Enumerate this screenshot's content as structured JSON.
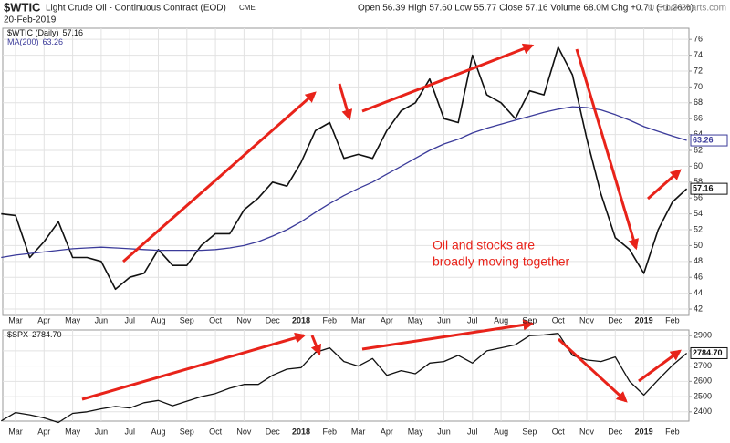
{
  "chart_data": [
    {
      "type": "line",
      "title": "$WTIC",
      "subtitle": "Light Crude Oil - Continuous Contract (EOD)",
      "exchange": "CME",
      "date": "20-Feb-2019",
      "quote": "Open 56.39  High 57.60  Low 55.77  Close 57.16  Volume 68.0M  Chg +0.71 (+1.26%)",
      "source": "© StockCharts.com",
      "annotation": [
        "Oil and stocks are",
        "broadly moving together"
      ],
      "categories": [
        null,
        "Mar",
        null,
        "Apr",
        null,
        "May",
        null,
        "Jun",
        null,
        "Jul",
        null,
        "Aug",
        null,
        "Sep",
        null,
        "Oct",
        null,
        "Nov",
        null,
        "Dec",
        null,
        "2018",
        null,
        "Feb",
        null,
        "Mar",
        null,
        "Apr",
        null,
        "May",
        null,
        "Jun",
        null,
        "Jul",
        null,
        "Aug",
        null,
        "Sep",
        null,
        "Oct",
        null,
        "Nov",
        null,
        "Dec",
        null,
        "2019",
        null,
        "Feb",
        null
      ],
      "series": [
        {
          "name": "$WTIC (Daily)",
          "color": "#111111",
          "values": [
            54,
            53.8,
            48.5,
            50.5,
            53,
            48.5,
            48.5,
            48,
            44.5,
            46,
            46.5,
            49.5,
            47.5,
            47.5,
            50,
            51.5,
            51.5,
            54.5,
            56,
            58,
            57.5,
            60.5,
            64.5,
            65.5,
            61,
            61.5,
            61,
            64.5,
            67,
            68,
            71,
            66,
            65.5,
            74,
            69,
            68,
            66,
            69.5,
            69,
            75,
            71.5,
            63.5,
            56.5,
            51,
            49.5,
            46.5,
            52,
            55.5,
            57.16
          ]
        },
        {
          "name": "MA(200)",
          "color": "#3b3b9a",
          "values": [
            48.5,
            48.8,
            49,
            49.2,
            49.4,
            49.6,
            49.7,
            49.8,
            49.7,
            49.6,
            49.5,
            49.4,
            49.4,
            49.4,
            49.4,
            49.5,
            49.7,
            50,
            50.5,
            51.2,
            52,
            53,
            54.2,
            55.3,
            56.3,
            57.2,
            58,
            59,
            60,
            61,
            62,
            62.8,
            63.4,
            64.2,
            64.8,
            65.3,
            65.8,
            66.3,
            66.8,
            67.2,
            67.5,
            67.4,
            67.1,
            66.5,
            65.8,
            65,
            64.4,
            63.8,
            63.26
          ]
        }
      ],
      "ylim": [
        41.2,
        77.4
      ],
      "yticks": [
        42,
        44,
        46,
        48,
        50,
        52,
        54,
        56,
        58,
        60,
        62,
        64,
        66,
        68,
        70,
        72,
        74,
        76
      ],
      "grid": true
    },
    {
      "type": "line",
      "categories": [
        null,
        "Mar",
        null,
        "Apr",
        null,
        "May",
        null,
        "Jun",
        null,
        "Jul",
        null,
        "Aug",
        null,
        "Sep",
        null,
        "Oct",
        null,
        "Nov",
        null,
        "Dec",
        null,
        "2018",
        null,
        "Feb",
        null,
        "Mar",
        null,
        "Apr",
        null,
        "May",
        null,
        "Jun",
        null,
        "Jul",
        null,
        "Aug",
        null,
        "Sep",
        null,
        "Oct",
        null,
        "Nov",
        null,
        "Dec",
        null,
        "2019",
        null,
        "Feb",
        null
      ],
      "series": [
        {
          "name": "$SPX",
          "color": "#111111",
          "values": [
            2340,
            2395,
            2380,
            2360,
            2330,
            2390,
            2400,
            2420,
            2435,
            2425,
            2460,
            2475,
            2440,
            2470,
            2500,
            2520,
            2555,
            2580,
            2580,
            2640,
            2680,
            2690,
            2790,
            2820,
            2730,
            2700,
            2750,
            2640,
            2670,
            2650,
            2720,
            2730,
            2770,
            2720,
            2800,
            2820,
            2840,
            2900,
            2905,
            2915,
            2770,
            2740,
            2730,
            2760,
            2600,
            2510,
            2610,
            2705,
            2784.7
          ],
          "value_labels_last": "2784.70"
        }
      ],
      "ylim": [
        2339,
        2937
      ],
      "yticks": [
        2400,
        2500,
        2600,
        2700,
        2800,
        2900
      ],
      "grid": true
    }
  ]
}
